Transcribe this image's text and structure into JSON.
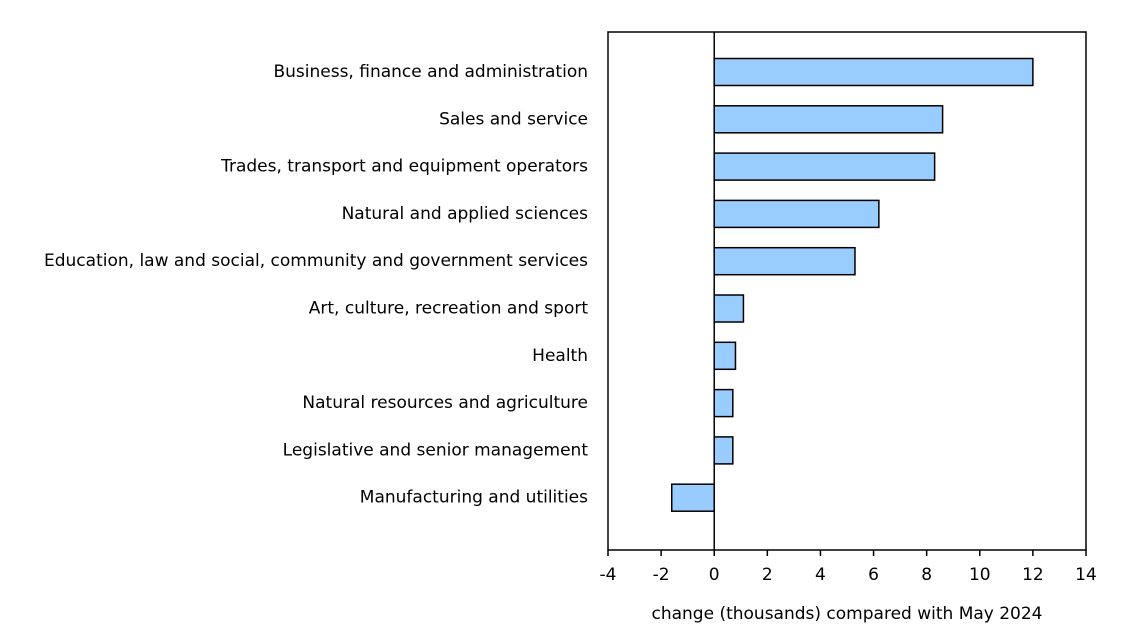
{
  "chart_data": {
    "type": "bar",
    "orientation": "horizontal",
    "x_label": "change (thousands) compared with May 2024",
    "categories": [
      "Business, finance and administration",
      "Sales and service",
      "Trades, transport and equipment operators",
      "Natural and applied sciences",
      "Education, law and social, community and government services",
      "Art, culture, recreation and sport",
      "Health",
      "Natural resources and agriculture",
      "Legislative and senior management",
      "Manufacturing and utilities"
    ],
    "values": [
      12.0,
      8.6,
      8.3,
      6.2,
      5.3,
      1.1,
      0.8,
      0.7,
      0.7,
      -1.6
    ],
    "color": "#99ccff",
    "xlim": [
      -4,
      14
    ],
    "xticks": [
      -4,
      -2,
      0,
      2,
      4,
      6,
      8,
      10,
      12,
      14
    ]
  }
}
